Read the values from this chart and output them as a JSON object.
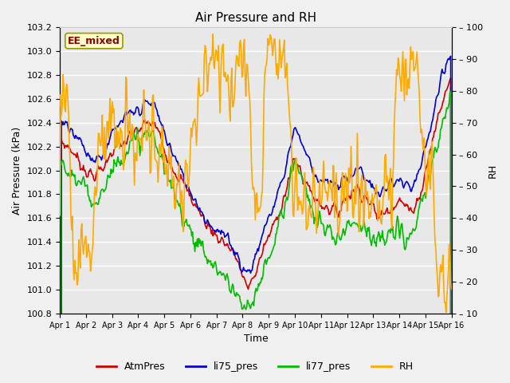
{
  "title": "Air Pressure and RH",
  "xlabel": "Time",
  "ylabel_left": "Air Pressure (kPa)",
  "ylabel_right": "RH",
  "annotation": "EE_mixed",
  "ylim_left": [
    100.8,
    103.2
  ],
  "ylim_right": [
    10,
    100
  ],
  "yticks_left": [
    100.8,
    101.0,
    101.2,
    101.4,
    101.6,
    101.8,
    102.0,
    102.2,
    102.4,
    102.6,
    102.8,
    103.0,
    103.2
  ],
  "yticks_right": [
    10,
    20,
    30,
    40,
    50,
    60,
    70,
    80,
    90,
    100
  ],
  "xtick_labels": [
    "Apr 1",
    "Apr 2",
    "Apr 3",
    "Apr 4",
    "Apr 5",
    "Apr 6",
    "Apr 7",
    "Apr 8",
    "Apr 9",
    "Apr 10",
    "Apr 11",
    "Apr 12",
    "Apr 13",
    "Apr 14",
    "Apr 15",
    "Apr 16"
  ],
  "colors": {
    "AtmPres": "#cc0000",
    "li75_pres": "#0000cc",
    "li77_pres": "#00bb00",
    "RH": "#ffaa00"
  },
  "lw": 1.2,
  "fig_bg": "#f0f0f0",
  "ax_bg": "#e8e8e8",
  "grid_color": "#ffffff",
  "num_points": 500,
  "figsize": [
    6.4,
    4.8
  ],
  "dpi": 100
}
